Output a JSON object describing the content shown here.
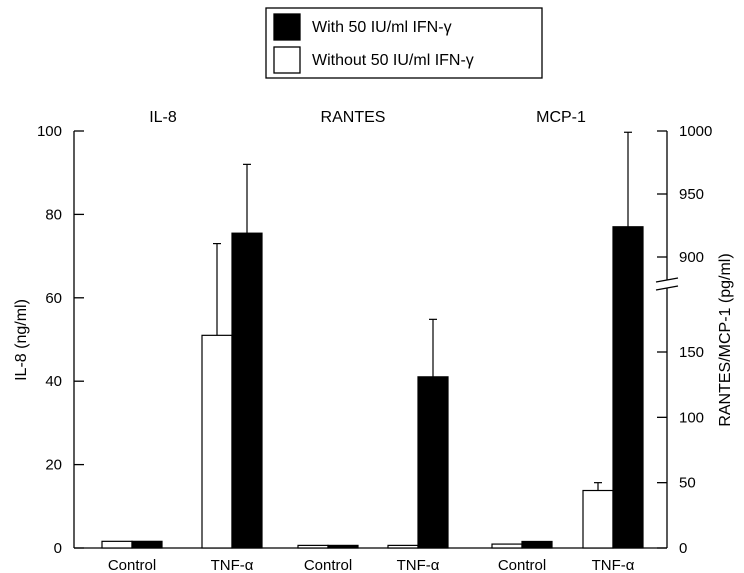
{
  "chart_data": {
    "type": "bar",
    "legend": {
      "placement": "top-center",
      "entries": [
        {
          "label": "With 50 IU/ml IFN-γ",
          "color": "#000000"
        },
        {
          "label": "Without 50 IU/ml IFN-γ",
          "color": "#ffffff"
        }
      ]
    },
    "left_axis": {
      "label": "IL-8 (ng/ml)",
      "ylim": [
        0,
        100
      ],
      "ticks": [
        0,
        20,
        40,
        60,
        80,
        100
      ]
    },
    "right_axis": {
      "label": "RANTES/MCP-1 (pg/ml)",
      "broken": true,
      "lower_ticks": [
        0,
        50,
        100,
        150
      ],
      "upper_ticks": [
        900,
        950,
        1000
      ]
    },
    "groups": [
      {
        "panel": "IL-8",
        "axis": "left",
        "categories": [
          "Control",
          "TNF-α"
        ],
        "without": [
          {
            "value": 1.6,
            "error": 0
          },
          {
            "value": 51,
            "error": 22
          }
        ],
        "with": [
          {
            "value": 1.6,
            "error": 0
          },
          {
            "value": 75.5,
            "error": 16.5
          }
        ]
      },
      {
        "panel": "RANTES",
        "axis": "right",
        "categories": [
          "Control",
          "TNF-α"
        ],
        "without": [
          {
            "value": 2,
            "error": 0
          },
          {
            "value": 2,
            "error": 0
          }
        ],
        "with": [
          {
            "value": 2,
            "error": 0
          },
          {
            "value": 131,
            "error": 44
          }
        ]
      },
      {
        "panel": "MCP-1",
        "axis": "right",
        "categories": [
          "Control",
          "TNF-α"
        ],
        "without": [
          {
            "value": 3,
            "error": 0
          },
          {
            "value": 44,
            "error": 6
          }
        ],
        "with": [
          {
            "value": 5,
            "error": 0
          },
          {
            "value": 924,
            "error": 75
          }
        ]
      }
    ]
  }
}
